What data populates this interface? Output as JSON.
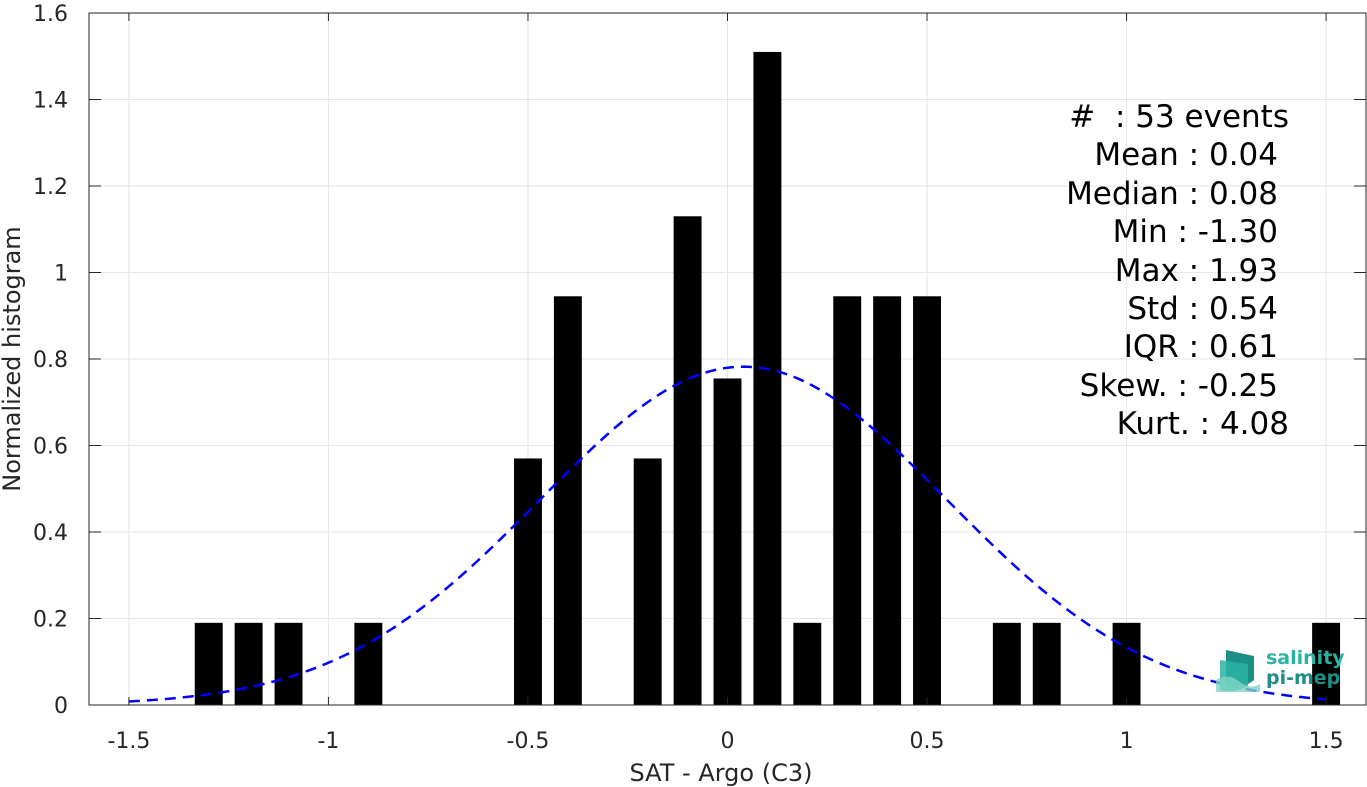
{
  "chart_data": {
    "type": "bar",
    "xlabel": "SAT - Argo (C3)",
    "ylabel": "Normalized histogram",
    "xlim": [
      -1.6,
      1.6
    ],
    "ylim": [
      0,
      1.6
    ],
    "xticks": [
      -1.5,
      -1,
      -0.5,
      0,
      0.5,
      1,
      1.5
    ],
    "xtick_labels": [
      "-1.5",
      "-1",
      "-0.5",
      "0",
      "0.5",
      "1",
      "1.5"
    ],
    "yticks": [
      0,
      0.2,
      0.4,
      0.6,
      0.8,
      1,
      1.2,
      1.4,
      1.6
    ],
    "ytick_labels": [
      "0",
      "0.2",
      "0.4",
      "0.6",
      "0.8",
      "1",
      "1.2",
      "1.4",
      "1.6"
    ],
    "grid": true,
    "bar_color": "#000000",
    "bar_width": 0.07,
    "bars": [
      {
        "x": -1.3,
        "y": 0.19
      },
      {
        "x": -1.2,
        "y": 0.19
      },
      {
        "x": -1.1,
        "y": 0.19
      },
      {
        "x": -0.9,
        "y": 0.19
      },
      {
        "x": -0.5,
        "y": 0.57
      },
      {
        "x": -0.4,
        "y": 0.945
      },
      {
        "x": -0.2,
        "y": 0.57
      },
      {
        "x": -0.1,
        "y": 1.13
      },
      {
        "x": 0.0,
        "y": 0.755
      },
      {
        "x": 0.1,
        "y": 1.51
      },
      {
        "x": 0.2,
        "y": 0.19
      },
      {
        "x": 0.3,
        "y": 0.945
      },
      {
        "x": 0.4,
        "y": 0.945
      },
      {
        "x": 0.5,
        "y": 0.945
      },
      {
        "x": 0.7,
        "y": 0.19
      },
      {
        "x": 0.8,
        "y": 0.19
      },
      {
        "x": 1.0,
        "y": 0.19
      },
      {
        "x": 1.5,
        "y": 0.19
      }
    ],
    "fit_curve": {
      "kind": "gaussian",
      "mean": 0.04,
      "std": 0.51,
      "x_range": [
        -1.5,
        1.5
      ],
      "color": "#0000ff",
      "style": "dashed"
    }
  },
  "stats": [
    "#  : 53 events",
    "Mean : 0.04",
    "Median : 0.08",
    "Min : -1.30",
    "Max : 1.93",
    "Std : 0.54",
    "IQR : 0.61",
    "Skew. : -0.25",
    "Kurt. : 4.08"
  ],
  "logo": {
    "line1": "salinity",
    "line2": "pi-mep",
    "icon": "salinity-logo-icon",
    "colors": [
      "#2ab3a3",
      "#1e8f86",
      "#7fd6c6"
    ]
  }
}
